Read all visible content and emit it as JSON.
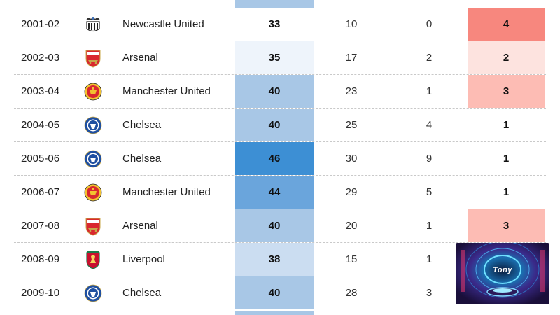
{
  "rows": [
    {
      "season": "2001-02",
      "club": "Newcastle United",
      "crest": "newcastle-crest-icon",
      "points": "33",
      "wins": "10",
      "draws": "0",
      "position": "4",
      "points_color": "#ffffff",
      "position_color": "#f7877e"
    },
    {
      "season": "2002-03",
      "club": "Arsenal",
      "crest": "arsenal-crest-icon",
      "points": "35",
      "wins": "17",
      "draws": "2",
      "position": "2",
      "points_color": "#eef4fb",
      "position_color": "#fde3df"
    },
    {
      "season": "2003-04",
      "club": "Manchester United",
      "crest": "manchester-united-crest-icon",
      "points": "40",
      "wins": "23",
      "draws": "1",
      "position": "3",
      "points_color": "#a8c7e6",
      "position_color": "#fdbcb4"
    },
    {
      "season": "2004-05",
      "club": "Chelsea",
      "crest": "chelsea-crest-icon",
      "points": "40",
      "wins": "25",
      "draws": "4",
      "position": "1",
      "points_color": "#a8c7e6",
      "position_color": "#ffffff"
    },
    {
      "season": "2005-06",
      "club": "Chelsea",
      "crest": "chelsea-crest-icon",
      "points": "46",
      "wins": "30",
      "draws": "9",
      "position": "1",
      "points_color": "#3d8fd4",
      "position_color": "#ffffff"
    },
    {
      "season": "2006-07",
      "club": "Manchester United",
      "crest": "manchester-united-crest-icon",
      "points": "44",
      "wins": "29",
      "draws": "5",
      "position": "1",
      "points_color": "#6aa5dc",
      "position_color": "#ffffff"
    },
    {
      "season": "2007-08",
      "club": "Arsenal",
      "crest": "arsenal-crest-icon",
      "points": "40",
      "wins": "20",
      "draws": "1",
      "position": "3",
      "points_color": "#a8c7e6",
      "position_color": "#fdbcb4"
    },
    {
      "season": "2008-09",
      "club": "Liverpool",
      "crest": "liverpool-crest-icon",
      "points": "38",
      "wins": "15",
      "draws": "1",
      "position": "",
      "points_color": "#cbddf1",
      "position_color": "#ffffff"
    },
    {
      "season": "2009-10",
      "club": "Chelsea",
      "crest": "chelsea-crest-icon",
      "points": "40",
      "wins": "28",
      "draws": "3",
      "position": "",
      "points_color": "#a8c7e6",
      "position_color": "#ffffff"
    }
  ],
  "overlay": {
    "label": "Tony",
    "icon": "tunnel-thumbnail-image"
  }
}
